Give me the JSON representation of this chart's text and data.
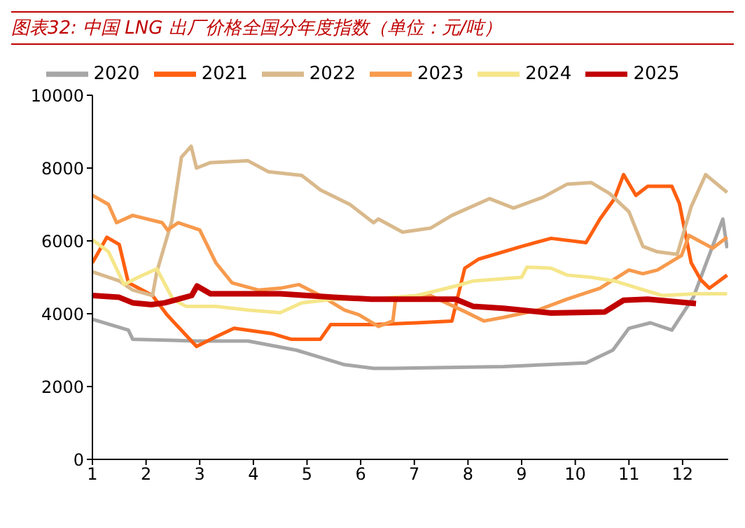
{
  "chart_data": {
    "type": "line",
    "title": "图表32:  中国 LNG 出厂价格全国分年度指数（单位：元/吨）",
    "xlim": [
      1,
      12.85
    ],
    "xticks": [
      1,
      2,
      3,
      4,
      5,
      6,
      7,
      8,
      9,
      10,
      11,
      12
    ],
    "ylim": [
      0,
      10000
    ],
    "yticks": [
      0,
      2000,
      4000,
      6000,
      8000,
      10000
    ],
    "grid": false,
    "legend": "top",
    "marker": "none",
    "line_style": "solid",
    "series": [
      {
        "name": "2020",
        "color": "#a6a6a6",
        "x": [
          1,
          1.67,
          1.75,
          2.94,
          3.9,
          4.8,
          5.25,
          5.7,
          6.24,
          6.6,
          8.66,
          10.2,
          10.7,
          11.0,
          11.4,
          11.8,
          12.2,
          12.75,
          12.83
        ],
        "values": [
          3850,
          3550,
          3300,
          3250,
          3250,
          3000,
          2800,
          2600,
          2500,
          2500,
          2550,
          2650,
          3000,
          3600,
          3750,
          3550,
          4450,
          6600,
          5800
        ]
      },
      {
        "name": "2021",
        "color": "#ff5f0f",
        "x": [
          1,
          1.27,
          1.5,
          1.67,
          2.12,
          2.39,
          2.94,
          3.28,
          3.64,
          4.36,
          4.7,
          5.25,
          5.44,
          6.24,
          7.05,
          7.7,
          7.94,
          8.2,
          9.0,
          9.55,
          10.2,
          10.46,
          10.73,
          10.9,
          11.13,
          11.35,
          11.8,
          11.94,
          12.16,
          12.34,
          12.5,
          12.83
        ],
        "values": [
          5400,
          6100,
          5900,
          4850,
          4500,
          3970,
          3100,
          3350,
          3600,
          3450,
          3300,
          3300,
          3700,
          3700,
          3750,
          3800,
          5250,
          5500,
          5850,
          6070,
          5950,
          6600,
          7160,
          7820,
          7250,
          7500,
          7500,
          7030,
          5400,
          4930,
          4700,
          5060
        ]
      },
      {
        "name": "2022",
        "color": "#d9b98c",
        "x": [
          1,
          1.5,
          1.75,
          2.12,
          2.2,
          2.48,
          2.66,
          2.84,
          2.94,
          3.2,
          3.9,
          4.28,
          4.9,
          5.25,
          5.8,
          6.24,
          6.33,
          6.78,
          7.3,
          7.7,
          8.4,
          8.85,
          9.4,
          9.85,
          10.3,
          10.64,
          11.0,
          11.26,
          11.53,
          11.9,
          12.16,
          12.43,
          12.83
        ],
        "values": [
          5150,
          4900,
          4650,
          4500,
          5150,
          6550,
          8300,
          8600,
          8000,
          8150,
          8200,
          7900,
          7800,
          7400,
          7000,
          6500,
          6600,
          6240,
          6350,
          6700,
          7160,
          6900,
          7200,
          7560,
          7600,
          7300,
          6800,
          5850,
          5700,
          5630,
          6940,
          7820,
          7330
        ]
      },
      {
        "name": "2023",
        "color": "#f79a4d",
        "x": [
          1,
          1.3,
          1.45,
          1.75,
          2.3,
          2.4,
          2.6,
          3.0,
          3.3,
          3.6,
          4.09,
          4.5,
          4.85,
          5.25,
          5.7,
          5.97,
          6.33,
          6.6,
          6.65,
          7.3,
          7.94,
          8.3,
          8.66,
          9.3,
          9.85,
          10.46,
          11.0,
          11.26,
          11.53,
          11.98,
          12.12,
          12.56,
          12.83
        ],
        "values": [
          7250,
          7000,
          6500,
          6700,
          6500,
          6300,
          6500,
          6300,
          5400,
          4850,
          4650,
          4700,
          4800,
          4500,
          4100,
          3970,
          3650,
          3800,
          4400,
          4500,
          4060,
          3800,
          3900,
          4100,
          4400,
          4700,
          5200,
          5100,
          5200,
          5600,
          6150,
          5800,
          6100
        ]
      },
      {
        "name": "2024",
        "color": "#f5e68a",
        "x": [
          1,
          1.3,
          1.59,
          1.85,
          2.2,
          2.5,
          2.75,
          3.3,
          3.9,
          4.5,
          4.9,
          5.5,
          6.2,
          7.05,
          7.77,
          8.1,
          9.0,
          9.1,
          9.55,
          9.85,
          10.3,
          10.73,
          11.17,
          11.62,
          12.25,
          12.83
        ],
        "values": [
          6030,
          5700,
          4800,
          5000,
          5230,
          4400,
          4200,
          4200,
          4100,
          4030,
          4300,
          4400,
          4400,
          4500,
          4760,
          4900,
          5000,
          5280,
          5250,
          5060,
          5000,
          4900,
          4700,
          4500,
          4550,
          4550
        ]
      },
      {
        "name": "2025",
        "color": "#c00000",
        "x": [
          1,
          1.5,
          1.75,
          2.1,
          2.35,
          2.85,
          2.95,
          3.2,
          3.9,
          4.5,
          5.5,
          6.2,
          7.77,
          8.1,
          8.66,
          9.55,
          10.55,
          10.9,
          11.35,
          12.25
        ],
        "values": [
          4500,
          4450,
          4300,
          4250,
          4300,
          4500,
          4760,
          4550,
          4550,
          4550,
          4450,
          4400,
          4400,
          4200,
          4150,
          4020,
          4050,
          4370,
          4400,
          4280
        ]
      }
    ]
  }
}
